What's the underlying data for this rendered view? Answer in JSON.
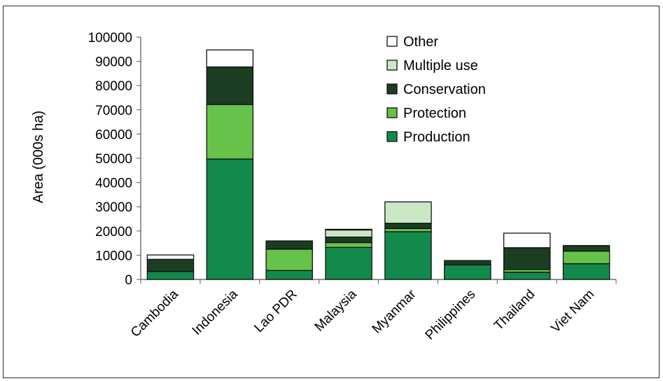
{
  "chart_data": {
    "type": "bar",
    "stacked": true,
    "title": "",
    "xlabel": "",
    "ylabel": "Area (000s ha)",
    "ylim": [
      0,
      100000
    ],
    "yticks": [
      0,
      10000,
      20000,
      30000,
      40000,
      50000,
      60000,
      70000,
      80000,
      90000,
      100000
    ],
    "ytick_labels": [
      "0",
      "10000",
      "20000",
      "30000",
      "40000",
      "50000",
      "60000",
      "70000",
      "80000",
      "90000",
      "100000"
    ],
    "grid": false,
    "legend_position": "top-right",
    "categories": [
      "Cambodia",
      "Indonesia",
      "Lao PDR",
      "Malaysia",
      "Myanmar",
      "Philippines",
      "Thailand",
      "Viet Nam"
    ],
    "series": [
      {
        "name": "Production",
        "color": "#138a4b",
        "values": [
          3300,
          49700,
          3700,
          13200,
          19700,
          6000,
          3000,
          6500
        ]
      },
      {
        "name": "Protection",
        "color": "#66c24a",
        "values": [
          0,
          22500,
          8800,
          2000,
          1300,
          0,
          1100,
          5200
        ]
      },
      {
        "name": "Conservation",
        "color": "#1b3d21",
        "values": [
          5000,
          15500,
          3400,
          2300,
          2200,
          1800,
          9000,
          2300
        ]
      },
      {
        "name": "Multiple use",
        "color": "#cbe8c6",
        "values": [
          0,
          0,
          0,
          2900,
          8800,
          0,
          0,
          0
        ]
      },
      {
        "name": "Other",
        "color": "#ffffff",
        "values": [
          1800,
          7000,
          0,
          300,
          0,
          0,
          6000,
          0
        ]
      }
    ]
  }
}
